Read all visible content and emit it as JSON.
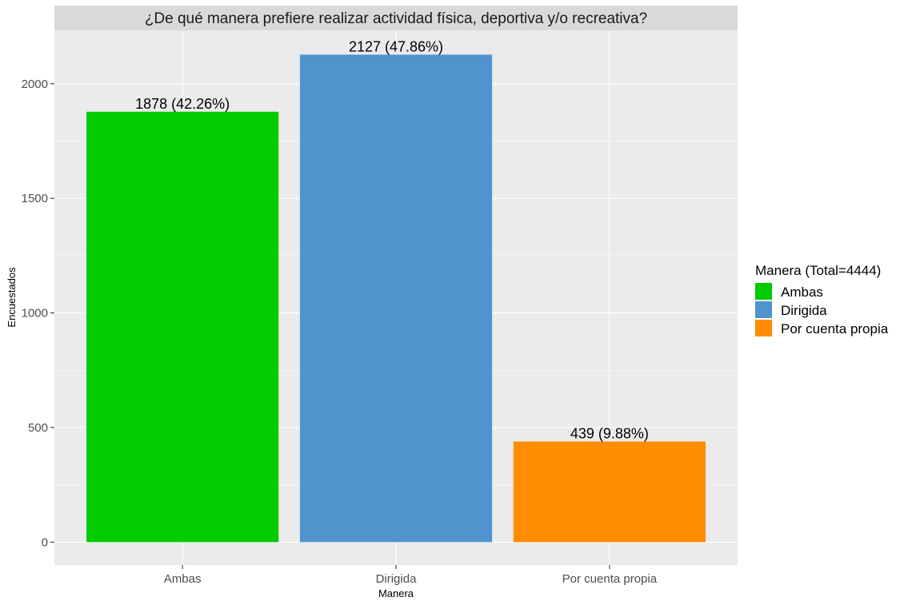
{
  "chart_data": {
    "type": "bar",
    "title": "¿De qué manera prefiere realizar actividad física, deportiva y/o recreativa?",
    "xlabel": "Manera",
    "ylabel": "Encuestados",
    "categories": [
      "Ambas",
      "Dirigida",
      "Por cuenta propia"
    ],
    "values": [
      1878,
      2127,
      439
    ],
    "data_labels": [
      "1878 (42.26%)",
      "2127 (47.86%)",
      "439 (9.88%)"
    ],
    "colors": [
      "#00cc00",
      "#4f94cd",
      "#ff8c00"
    ],
    "ylim": [
      -100,
      2233
    ],
    "yticks": [
      0,
      500,
      1000,
      1500,
      2000
    ],
    "grid": true,
    "legend": {
      "title": "Manera (Total=4444)",
      "placement": "right",
      "entries": [
        "Ambas",
        "Dirigida",
        "Por cuenta propia"
      ]
    }
  }
}
